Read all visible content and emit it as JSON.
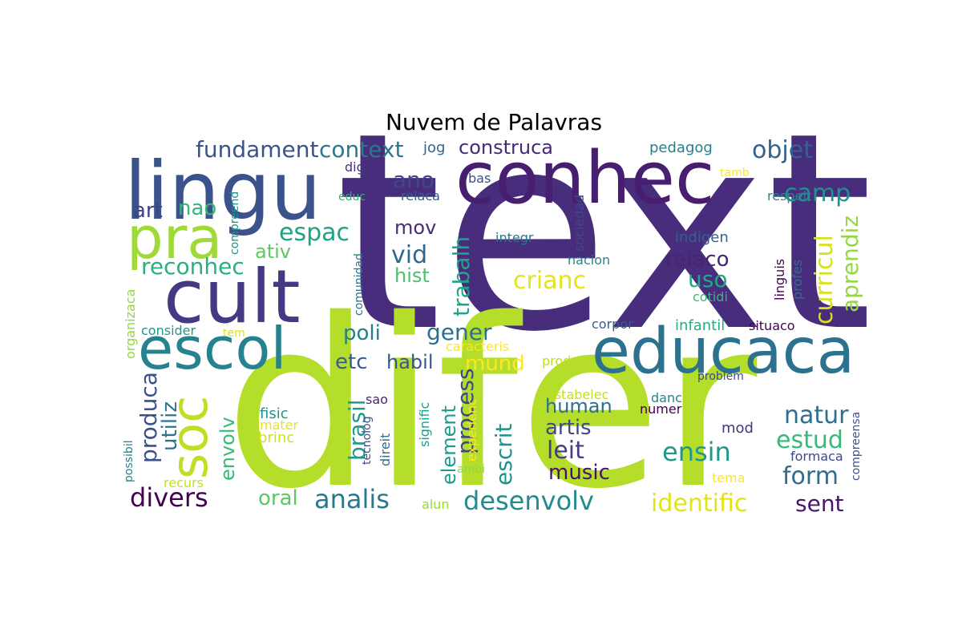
{
  "chart_data": {
    "type": "wordcloud",
    "title": "Nuvem de Palavras",
    "words": [
      {
        "text": "text",
        "color": "#472d7b"
      },
      {
        "text": "difer",
        "color": "#b5de2b"
      },
      {
        "text": "conhec",
        "color": "#481f70"
      },
      {
        "text": "educaca",
        "color": "#2c728e"
      },
      {
        "text": "lingu",
        "color": "#3b528b"
      },
      {
        "text": "cult",
        "color": "#443983"
      },
      {
        "text": "escol",
        "color": "#26828e"
      },
      {
        "text": "pra",
        "color": "#a0da39"
      },
      {
        "text": "soc",
        "color": "#bddf26"
      },
      {
        "text": "fundament",
        "color": "#3b528b"
      },
      {
        "text": "context",
        "color": "#2a788e"
      },
      {
        "text": "construca",
        "color": "#482878"
      },
      {
        "text": "objet",
        "color": "#33638d"
      },
      {
        "text": "camp",
        "color": "#21918c"
      },
      {
        "text": "curricul",
        "color": "#d8e219"
      },
      {
        "text": "aprendiz",
        "color": "#95d840"
      },
      {
        "text": "ano",
        "color": "#3e4989"
      },
      {
        "text": "art",
        "color": "#414487"
      },
      {
        "text": "nao",
        "color": "#35b779"
      },
      {
        "text": "espac",
        "color": "#1fa187"
      },
      {
        "text": "reconhec",
        "color": "#2ab07f"
      },
      {
        "text": "ativ",
        "color": "#5ec962"
      },
      {
        "text": "mov",
        "color": "#472c7a"
      },
      {
        "text": "vid",
        "color": "#31688e"
      },
      {
        "text": "hist",
        "color": "#4ac16d"
      },
      {
        "text": "trabalh",
        "color": "#20a386"
      },
      {
        "text": "crianc",
        "color": "#e5e419"
      },
      {
        "text": "relaco",
        "color": "#482475"
      },
      {
        "text": "uso",
        "color": "#22a785"
      },
      {
        "text": "gener",
        "color": "#2d708e"
      },
      {
        "text": "poli",
        "color": "#287c8e"
      },
      {
        "text": "etc",
        "color": "#365c8d"
      },
      {
        "text": "habil",
        "color": "#39568c"
      },
      {
        "text": "mund",
        "color": "#fde725"
      },
      {
        "text": "process",
        "color": "#3f4788"
      },
      {
        "text": "produca",
        "color": "#3b518b"
      },
      {
        "text": "utiliz",
        "color": "#2c738e"
      },
      {
        "text": "brasil",
        "color": "#1f9a8a"
      },
      {
        "text": "element",
        "color": "#1e9b8a"
      },
      {
        "text": "escrit",
        "color": "#20928c"
      },
      {
        "text": "human",
        "color": "#2e6e8e"
      },
      {
        "text": "artis",
        "color": "#404688"
      },
      {
        "text": "leit",
        "color": "#433e85"
      },
      {
        "text": "music",
        "color": "#471365"
      },
      {
        "text": "natur",
        "color": "#2e6f8e"
      },
      {
        "text": "estud",
        "color": "#38b977"
      },
      {
        "text": "ensin",
        "color": "#1f988b"
      },
      {
        "text": "form",
        "color": "#2f6c8e"
      },
      {
        "text": "envolv",
        "color": "#3aba76"
      },
      {
        "text": "divers",
        "color": "#440154"
      },
      {
        "text": "oral",
        "color": "#5cc863"
      },
      {
        "text": "analis",
        "color": "#29798e"
      },
      {
        "text": "desenvolv",
        "color": "#238a8d"
      },
      {
        "text": "identific",
        "color": "#e2e418"
      },
      {
        "text": "sent",
        "color": "#481567"
      },
      {
        "text": "jog",
        "color": "#34618d"
      },
      {
        "text": "pedagog",
        "color": "#277f8e"
      },
      {
        "text": "digit",
        "color": "#453581"
      },
      {
        "text": "bas",
        "color": "#3e4a89"
      },
      {
        "text": "relaca",
        "color": "#355f8d"
      },
      {
        "text": "educ",
        "color": "#2db27d"
      },
      {
        "text": "compreend",
        "color": "#21918c"
      },
      {
        "text": "tamb",
        "color": "#fde725"
      },
      {
        "text": "respeit",
        "color": "#23898e"
      },
      {
        "text": "integr",
        "color": "#2a788e"
      },
      {
        "text": "sociedad",
        "color": "#3f4889"
      },
      {
        "text": "nacion",
        "color": "#24868e"
      },
      {
        "text": "indigen",
        "color": "#33638d"
      },
      {
        "text": "linguis",
        "color": "#440154"
      },
      {
        "text": "profes",
        "color": "#2d718e"
      },
      {
        "text": "cotidi",
        "color": "#35b779"
      },
      {
        "text": "comunidad",
        "color": "#2a768e"
      },
      {
        "text": "organizaca",
        "color": "#95d840"
      },
      {
        "text": "consider",
        "color": "#1f968b"
      },
      {
        "text": "tem",
        "color": "#d8e219"
      },
      {
        "text": "corpor",
        "color": "#355e8d"
      },
      {
        "text": "infantil",
        "color": "#25ac82"
      },
      {
        "text": "situaco",
        "color": "#440154"
      },
      {
        "text": "caracteris",
        "color": "#fde725"
      },
      {
        "text": "produz",
        "color": "#bddf26"
      },
      {
        "text": "problem",
        "color": "#3e4a89"
      },
      {
        "text": "sao",
        "color": "#482677"
      },
      {
        "text": "tecnolog",
        "color": "#3e4c8a"
      },
      {
        "text": "direit",
        "color": "#2e6e8e"
      },
      {
        "text": "signific",
        "color": "#1f9e89"
      },
      {
        "text": "experienc",
        "color": "#fde725"
      },
      {
        "text": "estabelec",
        "color": "#c2df23"
      },
      {
        "text": "danc",
        "color": "#24868e"
      },
      {
        "text": "numer",
        "color": "#440154"
      },
      {
        "text": "mod",
        "color": "#463480"
      },
      {
        "text": "fisic",
        "color": "#20928c"
      },
      {
        "text": "mater",
        "color": "#e7e419"
      },
      {
        "text": "brinc",
        "color": "#d0e11c"
      },
      {
        "text": "possibil",
        "color": "#277f8e"
      },
      {
        "text": "recurs",
        "color": "#c2df23"
      },
      {
        "text": "ambi",
        "color": "#93d741"
      },
      {
        "text": "alun",
        "color": "#9dd93b"
      },
      {
        "text": "formaca",
        "color": "#3e4989"
      },
      {
        "text": "tema",
        "color": "#fde725"
      },
      {
        "text": "compreensa",
        "color": "#3b528b"
      }
    ]
  }
}
